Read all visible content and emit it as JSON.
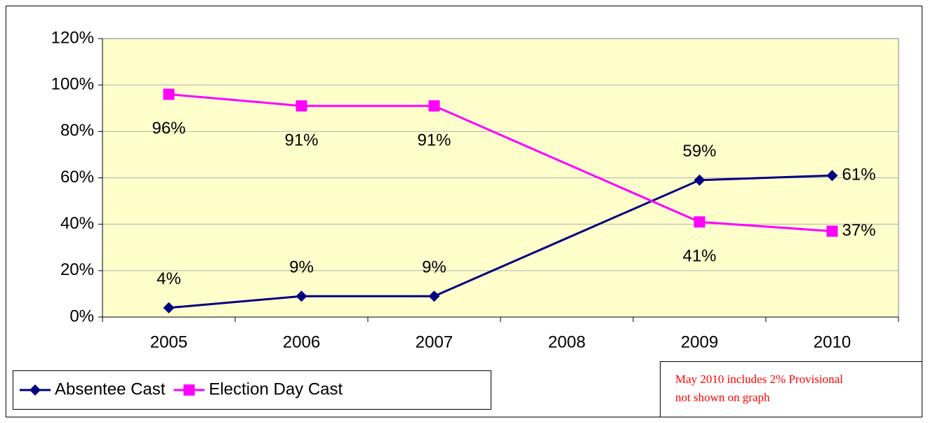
{
  "chart_data": {
    "type": "line",
    "x": [
      2005,
      2006,
      2007,
      2009,
      2010
    ],
    "xlim": [
      2004.5,
      2010.5
    ],
    "xticks": [
      2005,
      2006,
      2007,
      2008,
      2009,
      2010
    ],
    "ylim": [
      0,
      120
    ],
    "yticks": [
      {
        "value": 0,
        "label": "0%"
      },
      {
        "value": 20,
        "label": "20%"
      },
      {
        "value": 40,
        "label": "40%"
      },
      {
        "value": 60,
        "label": "60%"
      },
      {
        "value": 80,
        "label": "80%"
      },
      {
        "value": 100,
        "label": "100%"
      },
      {
        "value": 120,
        "label": "120%"
      }
    ],
    "grid": true,
    "legend": "bottom-left",
    "series": [
      {
        "name": "Absentee Cast",
        "color": "#000080",
        "marker": "diamond",
        "values": [
          4,
          9,
          9,
          59,
          61
        ],
        "value_labels": [
          "4%",
          "9%",
          "9%",
          "59%",
          "61%"
        ]
      },
      {
        "name": "Election Day Cast",
        "color": "#ff00ff",
        "marker": "square",
        "values": [
          96,
          91,
          91,
          41,
          37
        ],
        "value_labels": [
          "96%",
          "91%",
          "91%",
          "41%",
          "37%"
        ]
      }
    ],
    "annotation": [
      "May 2010 includes 2% Provisional",
      "not shown on graph"
    ]
  }
}
